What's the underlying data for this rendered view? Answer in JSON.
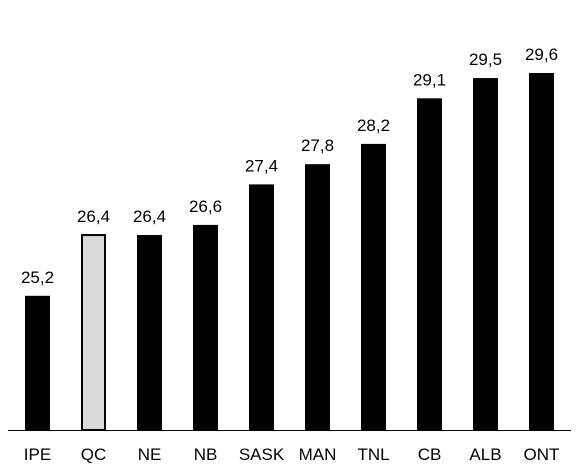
{
  "chart_data": {
    "type": "bar",
    "categories": [
      "IPE",
      "QC",
      "NE",
      "NB",
      "SASK",
      "MAN",
      "TNL",
      "CB",
      "ALB",
      "ONT"
    ],
    "values": [
      25.2,
      26.4,
      26.4,
      26.6,
      27.4,
      27.8,
      28.2,
      29.1,
      29.5,
      29.6
    ],
    "value_labels": [
      "25,2",
      "26,4",
      "26,4",
      "26,6",
      "27,4",
      "27,8",
      "28,2",
      "29,1",
      "29,5",
      "29,6"
    ],
    "highlight_category": "QC",
    "colors": {
      "bar": "#000000",
      "highlight_fill": "#d9d9d9",
      "highlight_stroke": "#000000",
      "axis": "#000000"
    },
    "title": "",
    "xlabel": "",
    "ylabel": "",
    "ylim": [
      22.55,
      29.6
    ],
    "grid": false,
    "legend": "none"
  }
}
